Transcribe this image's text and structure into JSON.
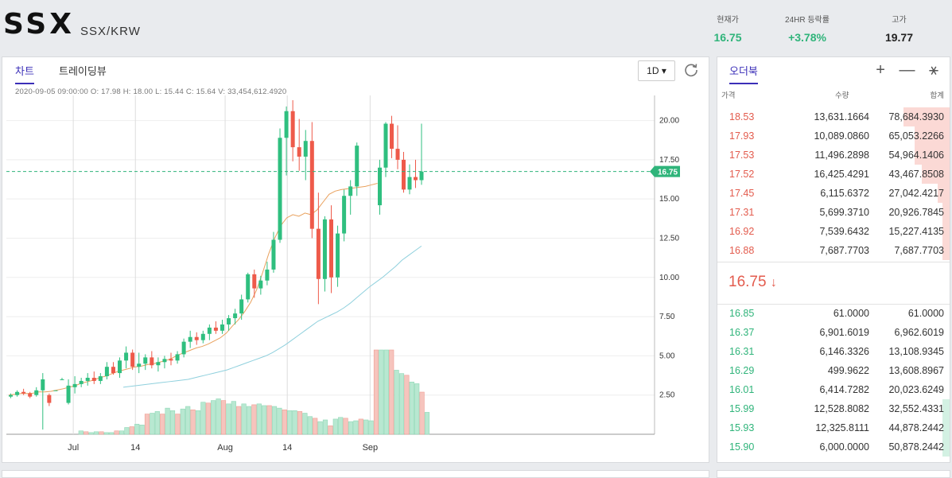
{
  "header": {
    "symbol": "SSX",
    "pair": "SSX/KRW",
    "stats": [
      {
        "label": "현재가",
        "value": "16.75",
        "color": "#2fb47a"
      },
      {
        "label": "24HR 등락률",
        "value": "+3.78%",
        "color": "#2fb47a"
      },
      {
        "label": "고가",
        "value": "19.77",
        "color": "#222222"
      }
    ]
  },
  "chart_panel": {
    "tabs": [
      {
        "label": "차트",
        "active": true
      },
      {
        "label": "트레이딩뷰",
        "active": false
      }
    ],
    "timeframe": "1D",
    "timeframe_caret": "▾",
    "ohlc_text": "2020-09-05 09:00:00   O: 17.98   H: 18.00   L: 15.44   C: 15.64   V: 33,454,612.4920"
  },
  "chart_data": {
    "type": "candlestick",
    "last_price": 16.75,
    "last_price_label": "16.75",
    "ylim": [
      0,
      21.5
    ],
    "y_ticks": [
      2.5,
      5.0,
      7.5,
      10.0,
      12.5,
      15.0,
      17.5,
      20.0
    ],
    "y_tick_labels": [
      "2.50",
      "5.00",
      "7.50",
      "10.00",
      "12.50",
      "15.00",
      "17.50",
      "20.00"
    ],
    "x_ticks": [
      {
        "index": 9,
        "label": "Jul"
      },
      {
        "index": 18,
        "label": "14"
      },
      {
        "index": 31,
        "label": "Aug"
      },
      {
        "index": 40,
        "label": "14"
      },
      {
        "index": 52,
        "label": "Sep"
      }
    ],
    "candles": [
      {
        "o": 2.4,
        "h": 2.6,
        "l": 2.3,
        "c": 2.5
      },
      {
        "o": 2.5,
        "h": 2.8,
        "l": 2.4,
        "c": 2.7
      },
      {
        "o": 2.7,
        "h": 2.9,
        "l": 2.5,
        "c": 2.6
      },
      {
        "o": 2.6,
        "h": 2.7,
        "l": 2.3,
        "c": 2.4
      },
      {
        "o": 2.5,
        "h": 3.0,
        "l": 2.4,
        "c": 2.8
      },
      {
        "o": 2.8,
        "h": 3.9,
        "l": 0.3,
        "c": 3.5
      },
      {
        "o": 2.5,
        "h": 2.6,
        "l": 1.8,
        "c": 2.0
      },
      {
        "o": 2.8,
        "h": 2.8,
        "l": 2.8,
        "c": 2.8
      },
      {
        "o": 3.5,
        "h": 3.6,
        "l": 3.5,
        "c": 3.5
      },
      {
        "o": 2.0,
        "h": 3.5,
        "l": 1.9,
        "c": 3.1
      },
      {
        "o": 3.0,
        "h": 3.7,
        "l": 2.6,
        "c": 3.2
      },
      {
        "o": 3.2,
        "h": 3.6,
        "l": 3.0,
        "c": 3.4
      },
      {
        "o": 3.4,
        "h": 3.9,
        "l": 3.1,
        "c": 3.6
      },
      {
        "o": 3.6,
        "h": 4.0,
        "l": 3.2,
        "c": 3.4
      },
      {
        "o": 3.4,
        "h": 3.9,
        "l": 3.2,
        "c": 3.7
      },
      {
        "o": 3.7,
        "h": 4.6,
        "l": 3.5,
        "c": 4.3
      },
      {
        "o": 4.3,
        "h": 4.6,
        "l": 3.8,
        "c": 3.9
      },
      {
        "o": 3.9,
        "h": 4.9,
        "l": 3.6,
        "c": 4.7
      },
      {
        "o": 4.7,
        "h": 5.6,
        "l": 4.2,
        "c": 5.2
      },
      {
        "o": 5.2,
        "h": 5.4,
        "l": 4.1,
        "c": 4.3
      },
      {
        "o": 4.3,
        "h": 5.2,
        "l": 3.9,
        "c": 4.5
      },
      {
        "o": 4.5,
        "h": 5.1,
        "l": 4.1,
        "c": 4.9
      },
      {
        "o": 4.9,
        "h": 5.3,
        "l": 4.2,
        "c": 4.4
      },
      {
        "o": 4.4,
        "h": 4.9,
        "l": 4.0,
        "c": 4.6
      },
      {
        "o": 4.6,
        "h": 5.0,
        "l": 4.2,
        "c": 4.8
      },
      {
        "o": 4.8,
        "h": 5.2,
        "l": 4.4,
        "c": 4.7
      },
      {
        "o": 4.7,
        "h": 5.3,
        "l": 4.5,
        "c": 5.1
      },
      {
        "o": 5.1,
        "h": 6.1,
        "l": 4.9,
        "c": 5.9
      },
      {
        "o": 5.9,
        "h": 6.6,
        "l": 5.5,
        "c": 6.2
      },
      {
        "o": 6.2,
        "h": 6.5,
        "l": 5.7,
        "c": 6.0
      },
      {
        "o": 6.0,
        "h": 6.6,
        "l": 5.8,
        "c": 6.4
      },
      {
        "o": 6.4,
        "h": 7.0,
        "l": 6.0,
        "c": 6.8
      },
      {
        "o": 6.8,
        "h": 7.2,
        "l": 6.4,
        "c": 6.6
      },
      {
        "o": 6.6,
        "h": 7.3,
        "l": 6.4,
        "c": 7.0
      },
      {
        "o": 7.0,
        "h": 7.6,
        "l": 6.6,
        "c": 7.4
      },
      {
        "o": 7.4,
        "h": 8.0,
        "l": 7.0,
        "c": 7.7
      },
      {
        "o": 7.7,
        "h": 8.9,
        "l": 7.3,
        "c": 8.6
      },
      {
        "o": 8.6,
        "h": 10.3,
        "l": 8.4,
        "c": 10.2
      },
      {
        "o": 10.2,
        "h": 10.5,
        "l": 8.7,
        "c": 9.3
      },
      {
        "o": 9.3,
        "h": 10.1,
        "l": 8.9,
        "c": 9.8
      },
      {
        "o": 9.8,
        "h": 11.0,
        "l": 9.5,
        "c": 10.5
      },
      {
        "o": 10.5,
        "h": 12.9,
        "l": 10.3,
        "c": 12.4
      },
      {
        "o": 12.4,
        "h": 19.5,
        "l": 12.2,
        "c": 18.9
      },
      {
        "o": 18.9,
        "h": 20.9,
        "l": 16.5,
        "c": 20.6
      },
      {
        "o": 20.6,
        "h": 21.3,
        "l": 17.4,
        "c": 18.3
      },
      {
        "o": 18.3,
        "h": 20.1,
        "l": 16.8,
        "c": 17.7
      },
      {
        "o": 17.7,
        "h": 19.4,
        "l": 16.2,
        "c": 18.7
      },
      {
        "o": 18.7,
        "h": 19.9,
        "l": 12.5,
        "c": 13.1
      },
      {
        "o": 13.1,
        "h": 15.4,
        "l": 8.3,
        "c": 9.9
      },
      {
        "o": 9.9,
        "h": 13.9,
        "l": 9.1,
        "c": 13.7
      },
      {
        "o": 13.7,
        "h": 14.6,
        "l": 9.0,
        "c": 10.0
      },
      {
        "o": 10.0,
        "h": 13.3,
        "l": 9.4,
        "c": 12.8
      },
      {
        "o": 12.8,
        "h": 15.6,
        "l": 12.3,
        "c": 15.2
      },
      {
        "o": 15.2,
        "h": 16.2,
        "l": 14.0,
        "c": 15.8
      },
      {
        "o": 15.8,
        "h": 18.6,
        "l": 15.2,
        "c": 18.4
      }
    ],
    "overlay_candles": [
      {
        "o": 14.6,
        "h": 17.5,
        "l": 14.0,
        "c": 17.0
      },
      {
        "o": 17.0,
        "h": 19.9,
        "l": 16.4,
        "c": 19.8
      },
      {
        "o": 19.8,
        "h": 20.3,
        "l": 17.6,
        "c": 18.2
      },
      {
        "o": 18.2,
        "h": 19.7,
        "l": 16.9,
        "c": 17.5
      },
      {
        "o": 17.5,
        "h": 18.0,
        "l": 15.4,
        "c": 15.6
      },
      {
        "o": 15.6,
        "h": 17.2,
        "l": 15.3,
        "c": 16.4
      },
      {
        "o": 16.4,
        "h": 17.5,
        "l": 15.7,
        "c": 16.2
      },
      {
        "o": 16.2,
        "h": 19.8,
        "l": 15.9,
        "c": 16.75
      }
    ],
    "ma_short": [
      2.5,
      2.55,
      2.6,
      2.6,
      2.62,
      2.7,
      2.7,
      2.74,
      2.82,
      2.9,
      3.0,
      3.1,
      3.25,
      3.35,
      3.45,
      3.6,
      3.7,
      3.85,
      4.0,
      4.1,
      4.2,
      4.3,
      4.35,
      4.45,
      4.5,
      4.6,
      4.7,
      4.85,
      5.05,
      5.2,
      5.35,
      5.5,
      5.6,
      5.75,
      5.95,
      6.15,
      6.45,
      6.9,
      7.3,
      7.8,
      8.4,
      9.2,
      10.3,
      11.5,
      12.5,
      13.3,
      13.8,
      14.0,
      13.9,
      14.1,
      14.0,
      14.3,
      14.8,
      15.3,
      15.5,
      15.6,
      15.65,
      15.7,
      15.75,
      15.8,
      15.9,
      16.0
    ],
    "ma_long": [
      3.0,
      3.05,
      3.1,
      3.15,
      3.2,
      3.25,
      3.3,
      3.35,
      3.4,
      3.45,
      3.5,
      3.6,
      3.7,
      3.8,
      3.9,
      4.0,
      4.1,
      4.25,
      4.4,
      4.55,
      4.7,
      4.85,
      5.0,
      5.2,
      5.45,
      5.7,
      6.0,
      6.3,
      6.6,
      6.9,
      7.2,
      7.4,
      7.6,
      7.8,
      8.05,
      8.35,
      8.7,
      9.05,
      9.4,
      9.7,
      10.0,
      10.35,
      10.7,
      11.1,
      11.4,
      11.7,
      12.0
    ],
    "volume": [
      4,
      3,
      2,
      3,
      3,
      2,
      2,
      4,
      4,
      8,
      9,
      12,
      11,
      24,
      25,
      27,
      24,
      31,
      28,
      24,
      30,
      33,
      29,
      28,
      38,
      37,
      40,
      42,
      40,
      36,
      39,
      33,
      36,
      33,
      35,
      36,
      34,
      34,
      33,
      31,
      29,
      28,
      28,
      27,
      25,
      21,
      19,
      15,
      17,
      10,
      18,
      20,
      19,
      15,
      16,
      18,
      17,
      16,
      100,
      100,
      100,
      100,
      76,
      72,
      70,
      62,
      60,
      50,
      26
    ]
  },
  "orderbook": {
    "tab": "오더북",
    "tools": "+ — ⚹",
    "headers": {
      "price": "가격",
      "qty": "수량",
      "total": "합계"
    },
    "asks": [
      {
        "price": "18.53",
        "qty": "13,631.1664",
        "total": "78,684.3930",
        "depth": 0.2
      },
      {
        "price": "17.93",
        "qty": "10,089.0860",
        "total": "65,053.2266",
        "depth": 0.15
      },
      {
        "price": "17.53",
        "qty": "11,496.2898",
        "total": "54,964.1406",
        "depth": 0.15
      },
      {
        "price": "17.52",
        "qty": "16,425.4291",
        "total": "43,467.8508",
        "depth": 0.12
      },
      {
        "price": "17.45",
        "qty": "6,115.6372",
        "total": "27,042.4217",
        "depth": 0.05
      },
      {
        "price": "17.31",
        "qty": "5,699.3710",
        "total": "20,926.7845",
        "depth": 0.03
      },
      {
        "price": "16.92",
        "qty": "7,539.6432",
        "total": "15,227.4135",
        "depth": 0.03
      },
      {
        "price": "16.88",
        "qty": "7,687.7703",
        "total": "7,687.7703",
        "depth": 0.03
      }
    ],
    "last_price": "16.75",
    "last_arrow": "↓",
    "bids": [
      {
        "price": "16.85",
        "qty": "61.0000",
        "total": "61.0000",
        "depth": 0.0
      },
      {
        "price": "16.37",
        "qty": "6,901.6019",
        "total": "6,962.6019",
        "depth": 0.0
      },
      {
        "price": "16.31",
        "qty": "6,146.3326",
        "total": "13,108.9345",
        "depth": 0.0
      },
      {
        "price": "16.29",
        "qty": "499.9622",
        "total": "13,608.8967",
        "depth": 0.0
      },
      {
        "price": "16.01",
        "qty": "6,414.7282",
        "total": "20,023.6249",
        "depth": 0.0
      },
      {
        "price": "15.99",
        "qty": "12,528.8082",
        "total": "32,552.4331",
        "depth": 0.03
      },
      {
        "price": "15.93",
        "qty": "12,325.8111",
        "total": "44,878.2442",
        "depth": 0.03
      },
      {
        "price": "15.90",
        "qty": "6,000.0000",
        "total": "50,878.2442",
        "depth": 0.03
      }
    ]
  }
}
